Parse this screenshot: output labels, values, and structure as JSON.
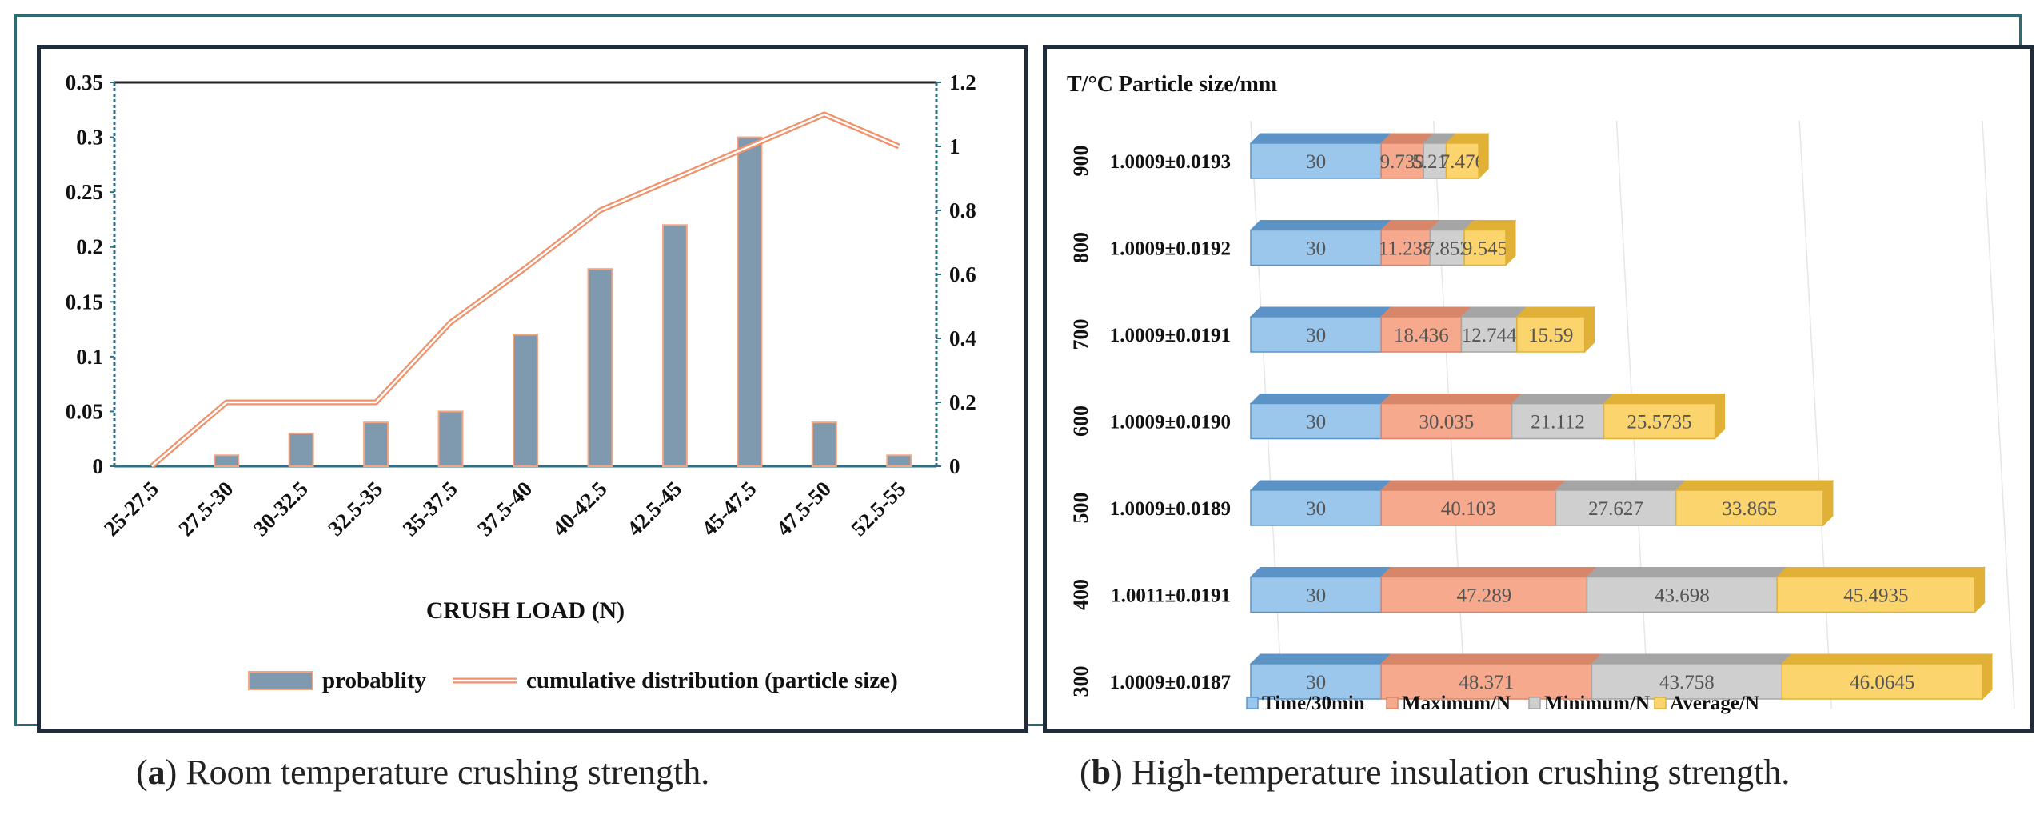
{
  "chart_data": [
    {
      "type": "bar",
      "panel_letter": "a",
      "caption": "Room temperature crushing strength.",
      "xlabel": "CRUSH LOAD (N)",
      "ylim": [
        0,
        0.35
      ],
      "y_ticks": [
        "0",
        "0.05",
        "0.1",
        "0.15",
        "0.2",
        "0.25",
        "0.3",
        "0.35"
      ],
      "y2lim": [
        0,
        1.2
      ],
      "y2_ticks": [
        "0",
        "0.2",
        "0.4",
        "0.6",
        "0.8",
        "1",
        "1.2"
      ],
      "categories": [
        "25-27.5",
        "27.5-30",
        "30-32.5",
        "32.5-35",
        "35-37.5",
        "37.5-40",
        "40-42.5",
        "42.5-45",
        "45-47.5",
        "47.5-50",
        "52.5-55"
      ],
      "series": [
        {
          "name": "probablity",
          "kind": "bar",
          "axis": "left",
          "values": [
            0,
            0.01,
            0.03,
            0.04,
            0.05,
            0.12,
            0.18,
            0.22,
            0.3,
            0.04,
            0.01
          ]
        },
        {
          "name": "cumulative distribution (particle size)",
          "kind": "line",
          "axis": "right",
          "values": [
            0,
            0.2,
            0.2,
            0.2,
            0.45,
            0.62,
            0.8,
            0.9,
            1.0,
            1.1,
            1.0
          ]
        }
      ],
      "grid": false,
      "legend": "bottom",
      "colors": {
        "bar": "#7f9aae",
        "bar_edge": "#f4a582",
        "line": "#f0916a",
        "line_inner": "#ffffff",
        "axis": "#2f6f86"
      }
    },
    {
      "type": "bar",
      "orientation": "horizontal-stacked",
      "panel_letter": "b",
      "caption": "High-temperature insulation crushing strength.",
      "header": "T/°C Particle size/mm",
      "rows": [
        {
          "temp": "900",
          "size": "1.0009±0.0193",
          "values": [
            30,
            9.739,
            5.213,
            7.476
          ],
          "labels": [
            "30",
            "9.739",
            "5.213",
            "7.476"
          ]
        },
        {
          "temp": "800",
          "size": "1.0009±0.0192",
          "values": [
            30,
            11.238,
            7.852,
            9.545
          ],
          "labels": [
            "30",
            "11.238",
            "7.852",
            "9.545"
          ]
        },
        {
          "temp": "700",
          "size": "1.0009±0.0191",
          "values": [
            30,
            18.436,
            12.744,
            15.59
          ],
          "labels": [
            "30",
            "18.436",
            "12.744",
            "15.59"
          ]
        },
        {
          "temp": "600",
          "size": "1.0009±0.0190",
          "values": [
            30,
            30.035,
            21.112,
            25.5735
          ],
          "labels": [
            "30",
            "30.035",
            "21.112",
            "25.5735"
          ]
        },
        {
          "temp": "500",
          "size": "1.0009±0.0189",
          "values": [
            30,
            40.103,
            27.627,
            33.865
          ],
          "labels": [
            "30",
            "40.103",
            "27.627",
            "33.865"
          ]
        },
        {
          "temp": "400",
          "size": "1.0011±0.0191",
          "values": [
            30,
            47.289,
            43.698,
            45.4935
          ],
          "labels": [
            "30",
            "47.289",
            "43.698",
            "45.4935"
          ]
        },
        {
          "temp": "300",
          "size": "1.0009±0.0187",
          "values": [
            30,
            48.371,
            43.758,
            46.0645
          ],
          "labels": [
            "30",
            "48.371",
            "43.758",
            "46.0645"
          ]
        }
      ],
      "series": [
        {
          "name": "Time/30min",
          "color": "#9cc7ec",
          "top": "#5b93c6"
        },
        {
          "name": "Maximum/N",
          "color": "#f6a98c",
          "top": "#d7866a"
        },
        {
          "name": "Minimum/N",
          "color": "#cfcfcf",
          "top": "#a5a5a5"
        },
        {
          "name": "Average/N",
          "color": "#fbd46d",
          "top": "#e0b136"
        }
      ],
      "legend": "bottom"
    }
  ]
}
